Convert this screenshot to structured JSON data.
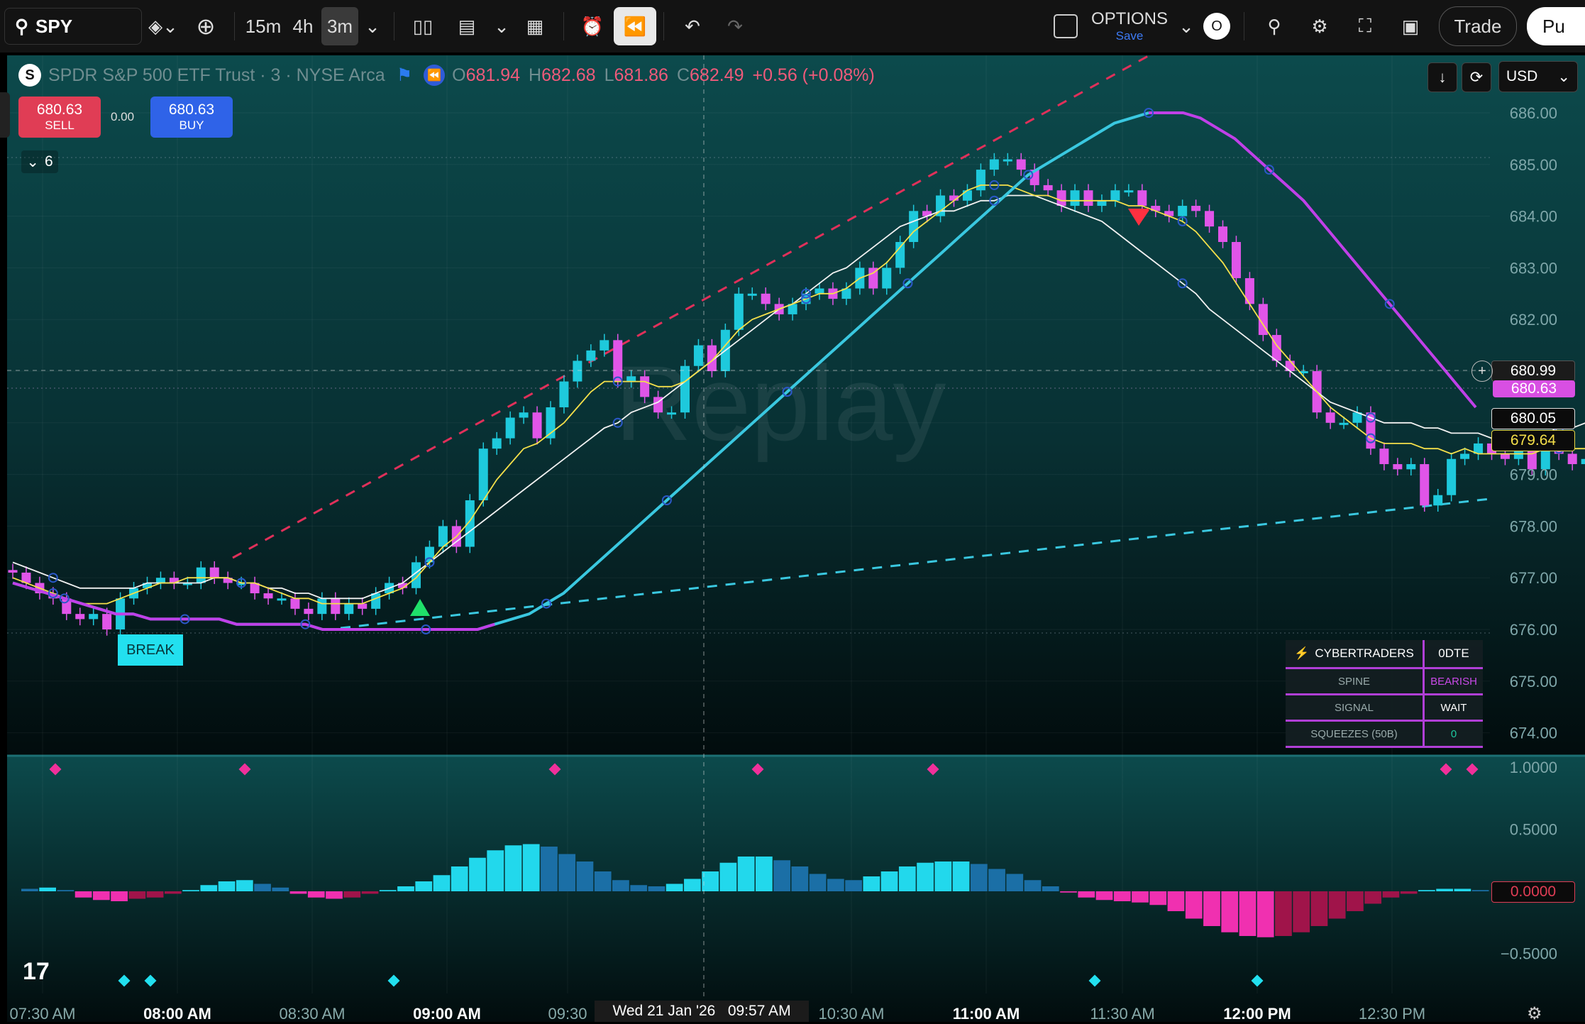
{
  "toolbar": {
    "symbol": "SPY",
    "intervals": [
      "15m",
      "4h",
      "3m"
    ],
    "active_interval": "3m",
    "options_label": "OPTIONS",
    "options_sub": "Save",
    "options_badge": "O",
    "trade_label": "Trade",
    "publish_label": "Pu"
  },
  "legend": {
    "name": "SPDR S&P 500 ETF Trust · 3 · NYSE Arca",
    "o_label": "O",
    "o": "681.94",
    "h_label": "H",
    "h": "682.68",
    "l_label": "L",
    "l": "681.86",
    "c_label": "C",
    "c": "682.49",
    "change": "+0.56 (+0.08%)",
    "currency": "USD"
  },
  "trade": {
    "sell_price": "680.63",
    "sell_label": "SELL",
    "spread": "0.00",
    "buy_price": "680.63",
    "buy_label": "BUY"
  },
  "indicators_count": "6",
  "watermark": "Replay",
  "break_label": "BREAK",
  "panel": {
    "title": "CYBERTRADERS",
    "title_value": "0DTE",
    "rows": [
      {
        "label": "SPINE",
        "value": "BEARISH"
      },
      {
        "label": "SIGNAL",
        "value": "WAIT"
      },
      {
        "label": "SQUEEZES (50B)",
        "value": "0"
      }
    ]
  },
  "price_tags": {
    "crosshair": "680.99",
    "last": "680.63",
    "ma1": "680.05",
    "ma2": "679.64",
    "osc_zero": "0.0000"
  },
  "crosshair_label": "Wed 21 Jan '26   09:57 AM",
  "colors": {
    "bg": "#0a3a3c",
    "up": "#1ec9dc",
    "down": "#e055e8",
    "ma_white": "#f2f2f2",
    "ma_yellow": "#f5e04a",
    "spine_up": "#3ac8e0",
    "spine_down": "#c040e8",
    "trend_red": "#e0305a",
    "trend_cyan": "#3ac8e0"
  },
  "chart_data": {
    "type": "candlestick",
    "y_ticks": [
      "686.00",
      "685.00",
      "684.00",
      "683.00",
      "682.00",
      "681.00",
      "680.00",
      "679.00",
      "678.00",
      "677.00",
      "676.00",
      "675.00",
      "674.00"
    ],
    "osc_ticks": [
      "1.0000",
      "0.5000",
      "0.0000",
      "−0.5000"
    ],
    "x_ticks": [
      {
        "t": "07:30 AM",
        "bold": false
      },
      {
        "t": "08:00 AM",
        "bold": true
      },
      {
        "t": "08:30 AM",
        "bold": false
      },
      {
        "t": "09:00 AM",
        "bold": true
      },
      {
        "t": "09:30",
        "bold": false
      },
      {
        "t": "10:30 AM",
        "bold": false
      },
      {
        "t": "11:00 AM",
        "bold": true
      },
      {
        "t": "11:30 AM",
        "bold": false
      },
      {
        "t": "12:00 PM",
        "bold": true
      },
      {
        "t": "12:30 PM",
        "bold": false
      }
    ],
    "close": [
      677.1,
      676.9,
      676.7,
      676.6,
      676.3,
      676.2,
      676.3,
      676.0,
      676.6,
      676.8,
      676.9,
      677.0,
      676.9,
      676.9,
      677.2,
      677.0,
      676.9,
      676.9,
      676.7,
      676.6,
      676.6,
      676.4,
      676.3,
      676.6,
      676.3,
      676.5,
      676.4,
      676.7,
      676.9,
      676.8,
      677.3,
      677.6,
      678.0,
      677.6,
      678.5,
      679.5,
      679.7,
      680.1,
      680.2,
      679.7,
      680.3,
      680.8,
      681.2,
      681.4,
      681.6,
      680.8,
      680.9,
      680.5,
      680.2,
      680.2,
      681.1,
      681.5,
      681.0,
      681.8,
      682.5,
      682.5,
      682.3,
      682.1,
      682.3,
      682.5,
      682.6,
      682.4,
      682.6,
      683.0,
      682.6,
      683.0,
      683.5,
      684.1,
      684.0,
      684.4,
      684.3,
      684.5,
      684.9,
      685.1,
      685.1,
      684.9,
      684.6,
      684.5,
      684.2,
      684.5,
      684.2,
      684.3,
      684.5,
      684.5,
      684.2,
      684.1,
      684.0,
      684.2,
      684.1,
      683.8,
      683.5,
      682.8,
      682.3,
      681.7,
      681.2,
      681.0,
      681.0,
      680.2,
      680.0,
      680.0,
      680.2,
      679.5,
      679.2,
      679.1,
      679.2,
      678.4,
      678.6,
      679.3,
      679.4,
      679.6,
      679.4,
      679.3,
      679.5,
      679.1,
      679.5,
      679.4,
      679.2,
      679.3,
      679.5,
      679.7
    ],
    "ma_white": [
      677.3,
      677.2,
      677.1,
      677.0,
      676.9,
      676.8,
      676.8,
      676.8,
      676.8,
      676.8,
      676.9,
      676.9,
      676.9,
      676.9,
      676.9,
      677.0,
      677.0,
      676.9,
      676.9,
      676.8,
      676.8,
      676.7,
      676.7,
      676.6,
      676.6,
      676.6,
      676.6,
      676.7,
      676.8,
      676.9,
      677.1,
      677.3,
      677.5,
      677.7,
      677.9,
      678.1,
      678.3,
      678.5,
      678.7,
      678.9,
      679.1,
      679.3,
      679.5,
      679.7,
      679.9,
      680.0,
      680.2,
      680.3,
      680.4,
      680.6,
      680.8,
      681.0,
      681.2,
      681.4,
      681.6,
      681.8,
      682.0,
      682.2,
      682.3,
      682.5,
      682.7,
      682.9,
      683.0,
      683.2,
      683.4,
      683.6,
      683.8,
      683.9,
      684.0,
      684.1,
      684.1,
      684.2,
      684.3,
      684.3,
      684.4,
      684.4,
      684.4,
      684.3,
      684.2,
      684.1,
      684.0,
      683.9,
      683.7,
      683.5,
      683.3,
      683.1,
      682.9,
      682.7,
      682.5,
      682.2,
      682.0,
      681.8,
      681.6,
      681.4,
      681.2,
      681.0,
      680.8,
      680.6,
      680.4,
      680.3,
      680.2,
      680.1,
      680.0,
      680.0,
      680.0,
      679.9,
      679.9,
      679.8,
      679.8,
      679.8,
      679.7,
      679.7,
      679.7,
      679.8,
      679.8,
      679.9,
      679.9,
      680.0,
      680.0,
      680.05
    ],
    "ma_yellow": [
      677.0,
      676.9,
      676.8,
      676.7,
      676.6,
      676.5,
      676.5,
      676.5,
      676.6,
      676.7,
      676.8,
      676.9,
      676.9,
      677.0,
      677.0,
      677.0,
      677.0,
      676.9,
      676.9,
      676.8,
      676.7,
      676.6,
      676.6,
      676.5,
      676.5,
      676.5,
      676.5,
      676.6,
      676.7,
      676.8,
      677.0,
      677.3,
      677.6,
      677.8,
      678.1,
      678.5,
      678.9,
      679.2,
      679.5,
      679.6,
      679.8,
      680.0,
      680.3,
      680.6,
      680.8,
      680.8,
      680.8,
      680.8,
      680.7,
      680.7,
      680.8,
      681.0,
      681.2,
      681.5,
      681.8,
      682.0,
      682.1,
      682.2,
      682.3,
      682.4,
      682.5,
      682.5,
      682.6,
      682.8,
      682.9,
      683.1,
      683.4,
      683.7,
      683.9,
      684.1,
      684.3,
      684.5,
      684.6,
      684.6,
      684.6,
      684.5,
      684.4,
      684.4,
      684.3,
      684.3,
      684.3,
      684.3,
      684.3,
      684.2,
      684.2,
      684.1,
      684.0,
      683.9,
      683.7,
      683.4,
      683.1,
      682.7,
      682.3,
      681.9,
      681.5,
      681.2,
      680.9,
      680.6,
      680.3,
      680.1,
      679.9,
      679.7,
      679.6,
      679.6,
      679.6,
      679.5,
      679.5,
      679.4,
      679.5,
      679.4,
      679.4,
      679.4,
      679.4,
      679.4,
      679.5,
      679.5,
      679.5,
      679.5,
      679.6,
      679.64
    ],
    "spine": [
      676.9,
      676.8,
      676.7,
      676.6,
      676.5,
      676.4,
      676.3,
      676.3,
      676.2,
      676.2,
      676.2,
      676.2,
      676.2,
      676.1,
      676.1,
      676.1,
      676.1,
      676.1,
      676.0,
      676.0,
      676.0,
      676.0,
      676.0,
      676.0,
      676.0,
      676.0,
      676.0,
      676.0,
      676.1,
      676.2,
      676.3,
      676.5,
      676.7,
      677.0,
      677.3,
      677.6,
      677.9,
      678.2,
      678.5,
      678.8,
      679.1,
      679.4,
      679.7,
      680.0,
      680.3,
      680.6,
      680.9,
      681.2,
      681.5,
      681.8,
      682.1,
      682.4,
      682.7,
      683.0,
      683.3,
      683.6,
      683.9,
      684.2,
      684.5,
      684.8,
      685.0,
      685.2,
      685.4,
      685.6,
      685.8,
      685.9,
      686.0,
      686.0,
      686.0,
      685.9,
      685.7,
      685.5,
      685.2,
      684.9,
      684.6,
      684.3,
      683.9,
      683.5,
      683.1,
      682.7,
      682.3,
      681.9,
      681.5,
      681.1,
      680.7,
      680.3
    ],
    "spine_color_switch_index": 66,
    "oscillator": [
      0.02,
      0.03,
      0.01,
      -0.05,
      -0.07,
      -0.08,
      -0.06,
      -0.05,
      -0.02,
      0.01,
      0.05,
      0.08,
      0.09,
      0.06,
      0.03,
      -0.02,
      -0.05,
      -0.06,
      -0.05,
      -0.02,
      0.01,
      0.04,
      0.08,
      0.13,
      0.2,
      0.27,
      0.33,
      0.37,
      0.38,
      0.36,
      0.3,
      0.24,
      0.16,
      0.09,
      0.05,
      0.04,
      0.06,
      0.1,
      0.16,
      0.23,
      0.28,
      0.28,
      0.25,
      0.2,
      0.14,
      0.1,
      0.09,
      0.12,
      0.16,
      0.2,
      0.23,
      0.24,
      0.24,
      0.22,
      0.18,
      0.14,
      0.09,
      0.04,
      -0.01,
      -0.05,
      -0.07,
      -0.08,
      -0.09,
      -0.11,
      -0.16,
      -0.22,
      -0.28,
      -0.33,
      -0.36,
      -0.37,
      -0.36,
      -0.33,
      -0.28,
      -0.22,
      -0.16,
      -0.1,
      -0.05,
      -0.02,
      0.01,
      0.02,
      0.02,
      0.01
    ]
  }
}
